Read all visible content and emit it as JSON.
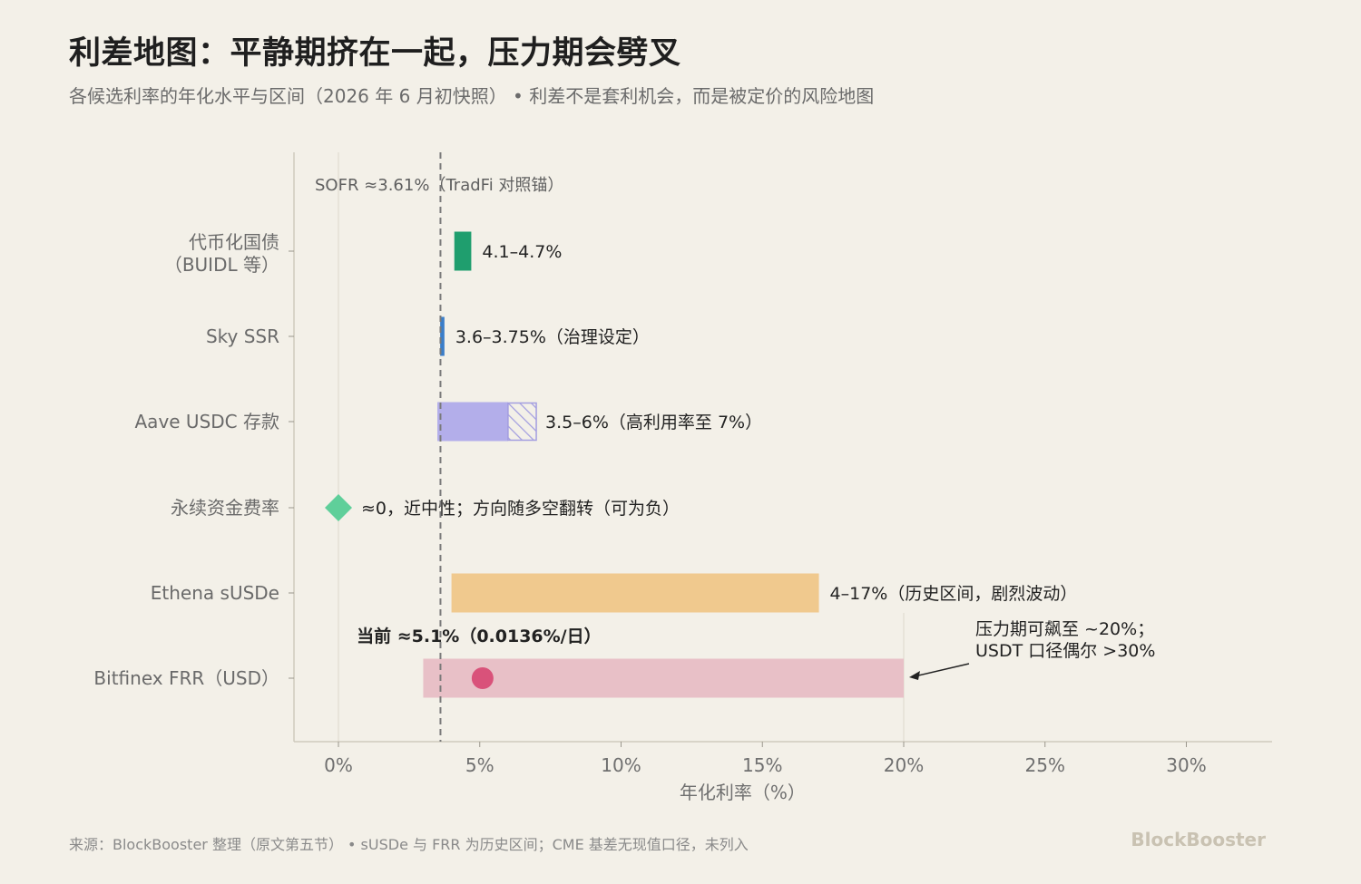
{
  "title": "利差地图：平静期挤在一起，压力期会劈叉",
  "subtitle": "各候选利率的年化水平与区间（2026 年 6 月初快照） • 利差不是套利机会，而是被定价的风险地图",
  "footer": "来源：BlockBooster 整理（原文第五节） • sUSDe 与 FRR 为历史区间；CME 基差无现值口径，未列入",
  "brand": "BlockBooster",
  "colors": {
    "background": "#f3f0e8",
    "buidl": "#1f9e6e",
    "sky": "#3a7dc8",
    "aave": "#b3aeea",
    "perp": "#5fcf9a",
    "ethena": "#f0c98e",
    "bitfinex_range": "#e8c0c7",
    "bitfinex_point": "#d9527a"
  },
  "chart_data": {
    "type": "range-bar",
    "xlabel": "年化利率（%）",
    "xlim": [
      -1.6,
      33
    ],
    "xticks": [
      0,
      5,
      10,
      15,
      20,
      25,
      30
    ],
    "xtick_labels": [
      "0%",
      "5%",
      "10%",
      "15%",
      "20%",
      "25%",
      "30%"
    ],
    "reference": {
      "value": 3.61,
      "label": "SOFR ≈3.61%（TradFi 对照锚）"
    },
    "rows": [
      {
        "category": [
          "代币化国债",
          "（BUIDL 等）"
        ],
        "low": 4.1,
        "high": 4.7,
        "label": "4.1–4.7%",
        "color": "#1f9e6e"
      },
      {
        "category": [
          "Sky SSR"
        ],
        "low": 3.6,
        "high": 3.75,
        "label": "3.6–3.75%（治理设定）",
        "color": "#3a7dc8"
      },
      {
        "category": [
          "Aave USDC 存款"
        ],
        "low": 3.5,
        "high": 6,
        "ext_high": 7,
        "label": "3.5–6%（高利用率至 7%）",
        "color": "#b3aeea"
      },
      {
        "category": [
          "永续资金费率"
        ],
        "point": 0,
        "marker": "diamond",
        "label": "≈0，近中性；方向随多空翻转（可为负）",
        "color": "#5fcf9a"
      },
      {
        "category": [
          "Ethena sUSDe"
        ],
        "low": 4,
        "high": 17,
        "label": "4–17%（历史区间，剧烈波动）",
        "color": "#f0c98e"
      },
      {
        "category": [
          "Bitfinex FRR（USD）"
        ],
        "low": 3,
        "high": 20,
        "point": 5.1,
        "marker": "circle",
        "point_label": "当前 ≈5.1%（0.0136%/日）",
        "color": "#e8c0c7",
        "point_color": "#d9527a"
      }
    ],
    "annotation": {
      "lines": [
        "压力期可飙至 ~20%；",
        "USDT 口径偶尔 >30%"
      ],
      "points_to": 20
    }
  }
}
